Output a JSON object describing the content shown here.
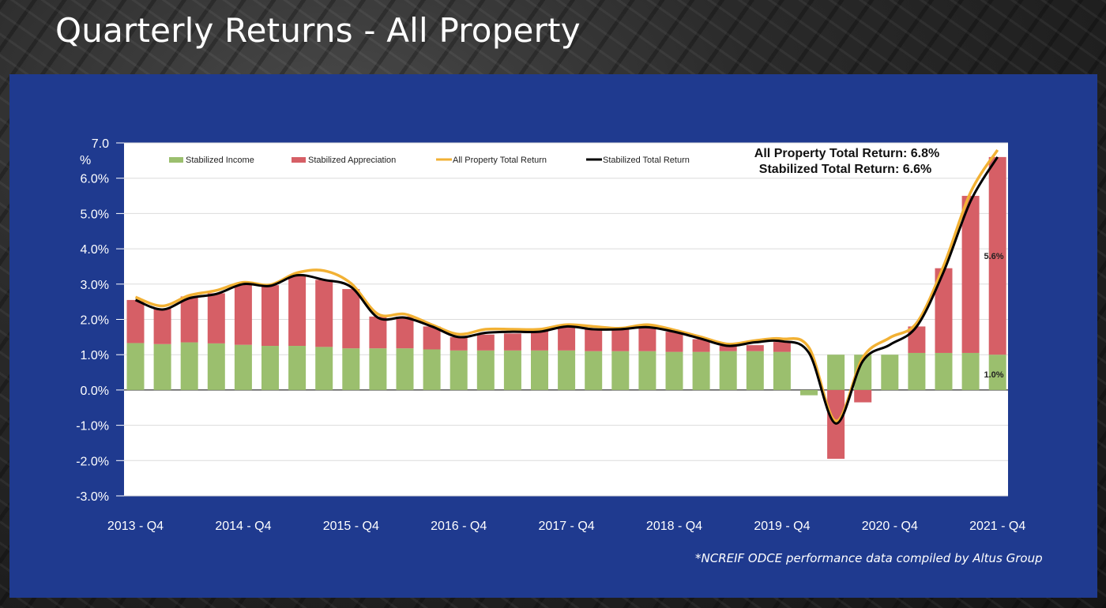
{
  "slide": {
    "title": "Quarterly Returns - All Property",
    "footnote": "*NCREIF ODCE performance data compiled by Altus Group"
  },
  "chart_data": {
    "type": "bar",
    "stacked": true,
    "yunit_top_label": "7.0 %",
    "y_tick_labels": [
      "7.0",
      "6.0%",
      "5.0%",
      "4.0%",
      "3.0%",
      "2.0%",
      "1.0%",
      "0.0%",
      "-1.0%",
      "-2.0%",
      "-3.0%"
    ],
    "ylim": [
      -3,
      7
    ],
    "grid": true,
    "legend_position": "top",
    "x_tick_labels": [
      "2013 - Q4",
      "2014 - Q4",
      "2015 - Q4",
      "2016 - Q4",
      "2017 - Q4",
      "2018 - Q4",
      "2019 - Q4",
      "2020 - Q4",
      "2021 - Q4"
    ],
    "categories": [
      "2013 - Q4",
      "2014 - Q1",
      "2014 - Q2",
      "2014 - Q3",
      "2014 - Q4",
      "2015 - Q1",
      "2015 - Q2",
      "2015 - Q3",
      "2015 - Q4",
      "2016 - Q1",
      "2016 - Q2",
      "2016 - Q3",
      "2016 - Q4",
      "2017 - Q1",
      "2017 - Q2",
      "2017 - Q3",
      "2017 - Q4",
      "2018 - Q1",
      "2018 - Q2",
      "2018 - Q3",
      "2018 - Q4",
      "2019 - Q1",
      "2019 - Q2",
      "2019 - Q3",
      "2019 - Q4",
      "2020 - Q1",
      "2020 - Q2",
      "2020 - Q3",
      "2020 - Q4",
      "2021 - Q1",
      "2021 - Q2",
      "2021 - Q3",
      "2021 - Q4"
    ],
    "series": [
      {
        "name": "Stabilized Income",
        "color": "#9bbf6e",
        "values": [
          1.33,
          1.3,
          1.35,
          1.32,
          1.28,
          1.25,
          1.25,
          1.22,
          1.18,
          1.18,
          1.18,
          1.15,
          1.12,
          1.12,
          1.12,
          1.12,
          1.12,
          1.1,
          1.1,
          1.1,
          1.08,
          1.08,
          1.1,
          1.1,
          1.08,
          -0.15,
          1.0,
          1.0,
          1.0,
          1.05,
          1.05,
          1.05,
          1.0
        ]
      },
      {
        "name": "Stabilized Appreciation",
        "color": "#d65f66",
        "values": [
          1.22,
          1.0,
          1.3,
          1.42,
          1.72,
          1.72,
          2.0,
          1.9,
          1.68,
          0.9,
          0.9,
          0.65,
          0.38,
          0.45,
          0.48,
          0.55,
          0.68,
          0.62,
          0.62,
          0.66,
          0.57,
          0.36,
          0.15,
          0.17,
          0.28,
          0.0,
          -1.95,
          -0.35,
          0.0,
          0.75,
          2.4,
          4.45,
          5.6
        ]
      }
    ],
    "lines": [
      {
        "name": "All Property Total Return",
        "color": "#f2b134",
        "values": [
          2.63,
          2.38,
          2.68,
          2.82,
          3.05,
          2.98,
          3.32,
          3.38,
          3.02,
          2.15,
          2.15,
          1.85,
          1.58,
          1.72,
          1.72,
          1.72,
          1.85,
          1.8,
          1.75,
          1.85,
          1.7,
          1.5,
          1.3,
          1.4,
          1.45,
          1.2,
          -0.88,
          0.92,
          1.48,
          1.9,
          3.52,
          5.6,
          6.8
        ]
      },
      {
        "name": "Stabilized Total Return",
        "color": "#000000",
        "values": [
          2.55,
          2.28,
          2.6,
          2.72,
          3.0,
          2.95,
          3.25,
          3.12,
          2.92,
          2.05,
          2.05,
          1.8,
          1.5,
          1.62,
          1.65,
          1.65,
          1.8,
          1.72,
          1.72,
          1.78,
          1.65,
          1.45,
          1.25,
          1.35,
          1.38,
          1.05,
          -0.95,
          0.82,
          1.28,
          1.8,
          3.35,
          5.35,
          6.6
        ]
      }
    ],
    "annotations": {
      "headline_1": "All  Property  Total Return:  6.8%",
      "headline_2": "Stabilized  Total Return:  6.6%",
      "bar_label_appreciation": "5.6%",
      "bar_label_income": "1.0%"
    }
  }
}
